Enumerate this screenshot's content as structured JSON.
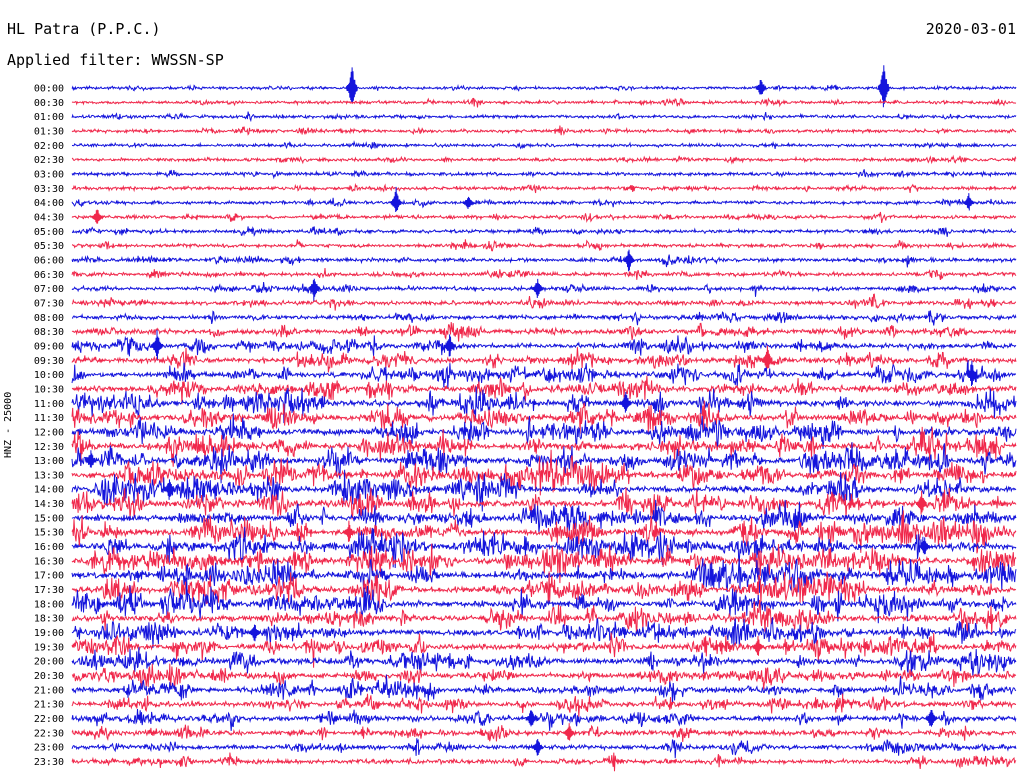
{
  "header": {
    "station": "HL Patra (P.P.C.)",
    "filter": "Applied filter: WWSSN-SP",
    "date": "2020-03-01"
  },
  "y_label": "HNZ - 25000",
  "colors": {
    "trace_a": "#1414dc",
    "trace_b": "#f0284b",
    "text": "#000000",
    "background": "#ffffff"
  },
  "chart_data": {
    "type": "helicorder",
    "title": "HL Patra (P.P.C.)",
    "date": "2020-03-01",
    "filter": "WWSSN-SP",
    "channel": "HNZ",
    "scale": 25000,
    "row_minutes": 30,
    "grid": false,
    "row_labels": [
      "00:00",
      "00:30",
      "01:00",
      "01:30",
      "02:00",
      "02:30",
      "03:00",
      "03:30",
      "04:00",
      "04:30",
      "05:00",
      "05:30",
      "06:00",
      "06:30",
      "07:00",
      "07:30",
      "08:00",
      "08:30",
      "09:00",
      "09:30",
      "10:00",
      "10:30",
      "11:00",
      "11:30",
      "12:00",
      "12:30",
      "13:00",
      "13:30",
      "14:00",
      "14:30",
      "15:00",
      "15:30",
      "16:00",
      "16:30",
      "17:00",
      "17:30",
      "18:00",
      "18:30",
      "19:00",
      "19:30",
      "20:00",
      "20:30",
      "21:00",
      "21:30",
      "22:00",
      "22:30",
      "23:00",
      "23:30"
    ],
    "series_colors": [
      "#1414dc",
      "#f0284b"
    ],
    "activity": [
      0.1,
      0.15,
      0.15,
      0.18,
      0.15,
      0.15,
      0.18,
      0.2,
      0.2,
      0.22,
      0.25,
      0.28,
      0.3,
      0.3,
      0.35,
      0.4,
      0.45,
      0.55,
      0.6,
      0.7,
      0.75,
      0.8,
      0.85,
      0.9,
      0.9,
      0.95,
      1.0,
      1.0,
      1.0,
      0.95,
      0.95,
      1.0,
      1.0,
      1.0,
      1.0,
      0.95,
      0.95,
      0.9,
      0.9,
      0.85,
      0.8,
      0.75,
      0.7,
      0.65,
      0.6,
      0.55,
      0.5,
      0.45
    ],
    "events": [
      {
        "row": 0,
        "minute": 8.9,
        "amplitude": 28
      },
      {
        "row": 0,
        "minute": 25.8,
        "amplitude": 30
      },
      {
        "row": 0,
        "minute": 21.9,
        "amplitude": 12
      },
      {
        "row": 8,
        "minute": 10.3,
        "amplitude": 16
      },
      {
        "row": 8,
        "minute": 12.6,
        "amplitude": 9
      },
      {
        "row": 8,
        "minute": 28.5,
        "amplitude": 10
      },
      {
        "row": 9,
        "minute": 0.8,
        "amplitude": 11
      },
      {
        "row": 12,
        "minute": 17.7,
        "amplitude": 14
      },
      {
        "row": 14,
        "minute": 7.7,
        "amplitude": 16
      },
      {
        "row": 14,
        "minute": 14.8,
        "amplitude": 12
      },
      {
        "row": 18,
        "minute": 2.7,
        "amplitude": 18
      },
      {
        "row": 18,
        "minute": 12.0,
        "amplitude": 14
      },
      {
        "row": 19,
        "minute": 22.1,
        "amplitude": 16
      },
      {
        "row": 20,
        "minute": 28.6,
        "amplitude": 14
      },
      {
        "row": 22,
        "minute": 17.6,
        "amplitude": 14
      },
      {
        "row": 26,
        "minute": 0.6,
        "amplitude": 12
      },
      {
        "row": 28,
        "minute": 3.1,
        "amplitude": 14
      },
      {
        "row": 29,
        "minute": 27.0,
        "amplitude": 14
      },
      {
        "row": 31,
        "minute": 8.8,
        "amplitude": 12
      },
      {
        "row": 32,
        "minute": 27.1,
        "amplitude": 12
      },
      {
        "row": 38,
        "minute": 5.8,
        "amplitude": 12
      },
      {
        "row": 39,
        "minute": 21.8,
        "amplitude": 12
      },
      {
        "row": 44,
        "minute": 14.6,
        "amplitude": 12
      },
      {
        "row": 44,
        "minute": 27.3,
        "amplitude": 14
      },
      {
        "row": 45,
        "minute": 15.8,
        "amplitude": 12
      },
      {
        "row": 46,
        "minute": 14.8,
        "amplitude": 12
      }
    ]
  }
}
